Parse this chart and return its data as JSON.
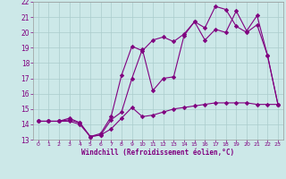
{
  "title": "Windchill (Refroidissement éolien,°C)",
  "bg_color": "#cce8e8",
  "line_color": "#800080",
  "grid_color": "#aacccc",
  "xlim": [
    -0.5,
    23.5
  ],
  "ylim": [
    13,
    22
  ],
  "xticks": [
    0,
    1,
    2,
    3,
    4,
    5,
    6,
    7,
    8,
    9,
    10,
    11,
    12,
    13,
    14,
    15,
    16,
    17,
    18,
    19,
    20,
    21,
    22,
    23
  ],
  "yticks": [
    13,
    14,
    15,
    16,
    17,
    18,
    19,
    20,
    21,
    22
  ],
  "line1_x": [
    0,
    1,
    2,
    3,
    4,
    5,
    6,
    7,
    8,
    9,
    10,
    11,
    12,
    13,
    14,
    15,
    16,
    17,
    18,
    19,
    20,
    21,
    22,
    23
  ],
  "line1_y": [
    14.2,
    14.2,
    14.2,
    14.2,
    14.0,
    13.2,
    13.3,
    13.7,
    14.4,
    15.1,
    14.5,
    14.6,
    14.8,
    15.0,
    15.1,
    15.2,
    15.3,
    15.4,
    15.4,
    15.4,
    15.4,
    15.3,
    15.3,
    15.3
  ],
  "line2_x": [
    0,
    1,
    2,
    3,
    4,
    5,
    6,
    7,
    8,
    9,
    10,
    11,
    12,
    13,
    14,
    15,
    16,
    17,
    18,
    19,
    20,
    21,
    22,
    23
  ],
  "line2_y": [
    14.2,
    14.2,
    14.2,
    14.4,
    14.1,
    13.2,
    13.4,
    14.5,
    17.2,
    19.1,
    18.8,
    19.5,
    19.7,
    19.4,
    19.9,
    20.7,
    19.5,
    20.2,
    20.0,
    21.4,
    20.1,
    21.1,
    18.5,
    15.3
  ],
  "line3_x": [
    0,
    1,
    2,
    3,
    4,
    5,
    6,
    7,
    8,
    9,
    10,
    11,
    12,
    13,
    14,
    15,
    16,
    17,
    18,
    19,
    20,
    21,
    22,
    23
  ],
  "line3_y": [
    14.2,
    14.2,
    14.2,
    14.3,
    14.1,
    13.2,
    13.3,
    14.3,
    14.8,
    17.0,
    18.9,
    16.2,
    17.0,
    17.1,
    19.8,
    20.7,
    20.3,
    21.7,
    21.5,
    20.4,
    20.0,
    20.5,
    18.5,
    15.3
  ]
}
